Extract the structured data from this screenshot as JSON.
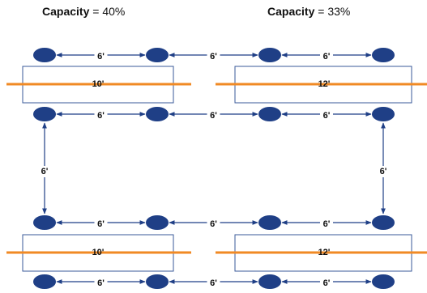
{
  "capacity_labels": [
    {
      "label": "Capacity",
      "equals": " = ",
      "value": "40%"
    },
    {
      "label": "Capacity",
      "equals": " = ",
      "value": "33%"
    }
  ],
  "tables": [
    {
      "length": "10'"
    },
    {
      "length": "12'"
    },
    {
      "length": "10'"
    },
    {
      "length": "12'"
    }
  ],
  "spacing": {
    "row_seat": "6'",
    "between_tables": "6'",
    "vertical": "6'"
  },
  "colors": {
    "seat": "#1f3f86",
    "arrow": "#1f3f86",
    "table_border": "#3a5a9a",
    "axis_line": "#f08a24",
    "text": "#111111"
  }
}
